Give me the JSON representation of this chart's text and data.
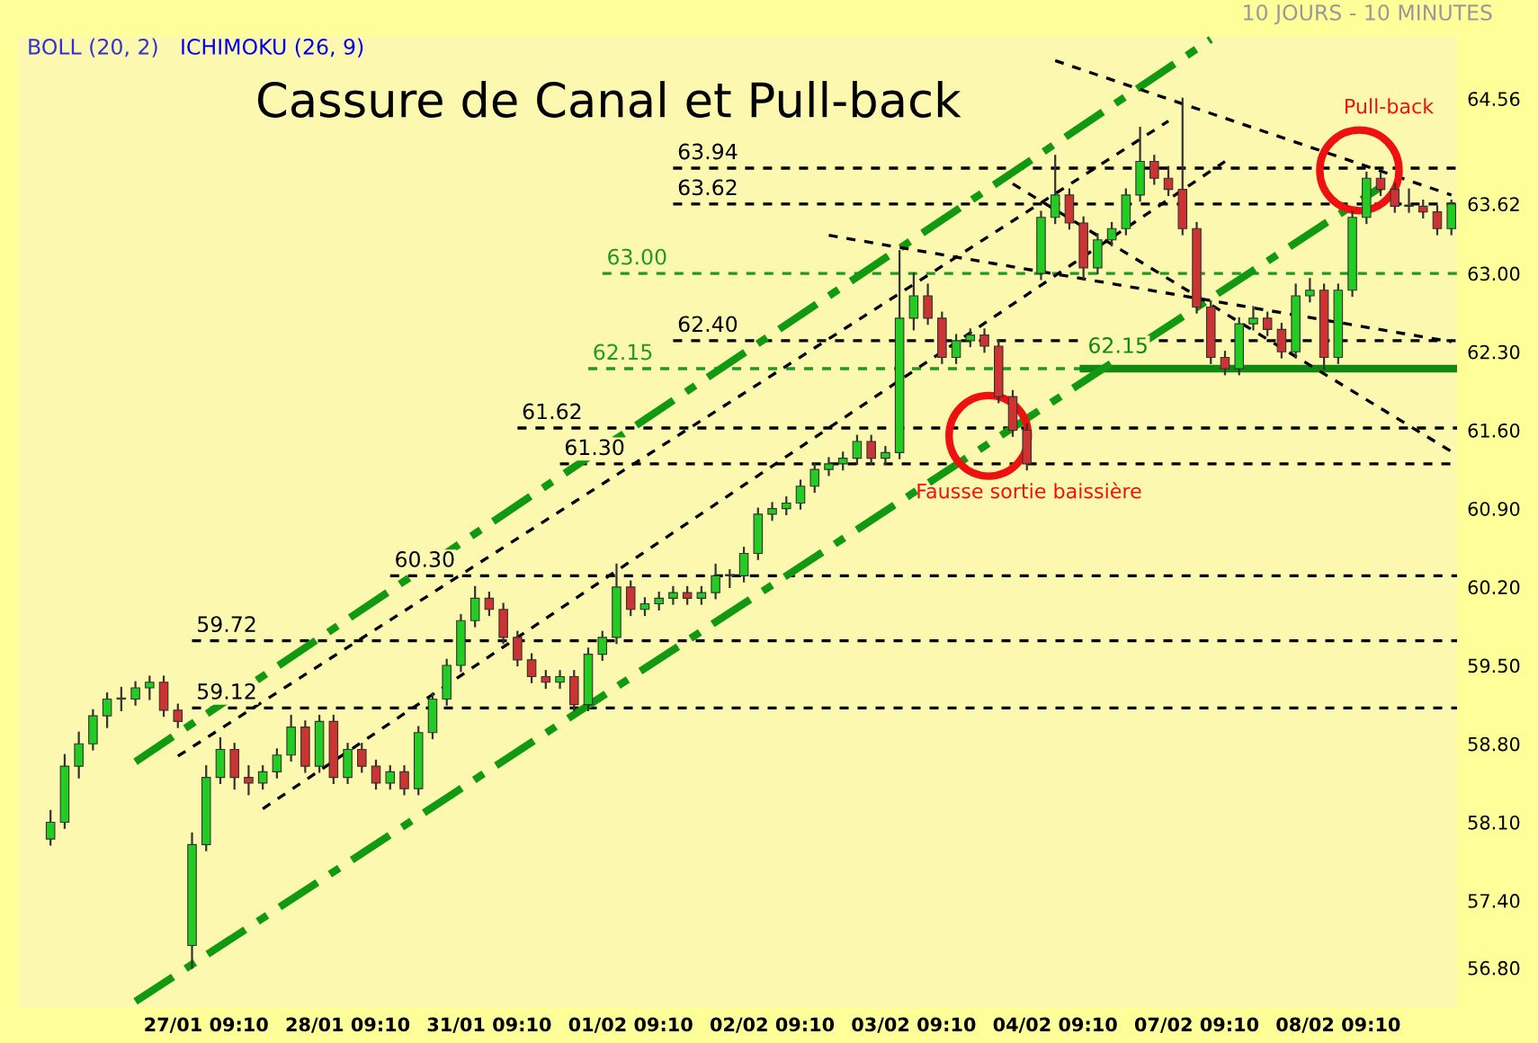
{
  "chart_data": {
    "type": "candlestick",
    "title": "Cassure de Canal et Pull-back",
    "subtitle": "10 JOURS - 10 MINUTES",
    "annotations": [
      "BOLL (20, 2)",
      "ICHIMOKU (26, 9)",
      "Pull-back",
      "Fausse sortie baissière"
    ],
    "categories": [
      null,
      null,
      null,
      null,
      null,
      null,
      null,
      null,
      null,
      null,
      null,
      null,
      null,
      "27/01 09:10",
      null,
      null,
      null,
      null,
      null,
      null,
      null,
      null,
      null,
      "28/01 09:10",
      null,
      null,
      null,
      null,
      null,
      null,
      null,
      null,
      null,
      "31/01 09:10",
      null,
      null,
      null,
      null,
      null,
      null,
      null,
      null,
      null,
      "01/02 09:10",
      null,
      null,
      null,
      null,
      null,
      null,
      null,
      null,
      null,
      "02/02 09:10",
      null,
      null,
      null,
      null,
      null,
      null,
      null,
      null,
      null,
      "03/02 09:10",
      null,
      null,
      null,
      null,
      null,
      null,
      null,
      null,
      null,
      "04/02 09:10",
      null,
      null,
      null,
      null,
      null,
      null,
      null,
      null,
      null,
      "07/02 09:10",
      null,
      null,
      null,
      null,
      null,
      null,
      null,
      null,
      null,
      "08/02 09:10",
      null,
      null,
      null,
      null,
      null,
      null,
      null,
      null
    ],
    "ohlc": [
      null,
      null,
      [
        57.95,
        58.2,
        57.9,
        58.1
      ],
      [
        58.1,
        58.7,
        58.05,
        58.6
      ],
      [
        58.6,
        58.9,
        58.5,
        58.8
      ],
      [
        58.8,
        59.1,
        58.75,
        59.05
      ],
      [
        59.05,
        59.25,
        58.95,
        59.2
      ],
      [
        59.2,
        59.3,
        59.1,
        59.2
      ],
      [
        59.2,
        59.35,
        59.15,
        59.3
      ],
      [
        59.3,
        59.4,
        59.2,
        59.35
      ],
      [
        59.35,
        59.4,
        59.05,
        59.1
      ],
      [
        59.1,
        59.15,
        58.95,
        59.0
      ],
      [
        57.0,
        58.0,
        56.8,
        57.9
      ],
      [
        57.9,
        58.6,
        57.85,
        58.5
      ],
      [
        58.5,
        58.85,
        58.45,
        58.75
      ],
      [
        58.75,
        58.8,
        58.4,
        58.5
      ],
      [
        58.5,
        58.6,
        58.35,
        58.45
      ],
      [
        58.45,
        58.6,
        58.4,
        58.55
      ],
      [
        58.55,
        58.75,
        58.5,
        58.7
      ],
      [
        58.7,
        59.05,
        58.65,
        58.95
      ],
      [
        58.95,
        59.0,
        58.55,
        58.6
      ],
      [
        58.6,
        59.05,
        58.55,
        59.0
      ],
      [
        59.0,
        59.05,
        58.45,
        58.5
      ],
      [
        58.5,
        58.8,
        58.45,
        58.75
      ],
      [
        58.75,
        58.8,
        58.55,
        58.6
      ],
      [
        58.6,
        58.65,
        58.4,
        58.45
      ],
      [
        58.45,
        58.6,
        58.4,
        58.55
      ],
      [
        58.55,
        58.6,
        58.35,
        58.4
      ],
      [
        58.4,
        58.95,
        58.35,
        58.9
      ],
      [
        58.9,
        59.25,
        58.85,
        59.2
      ],
      [
        59.2,
        59.55,
        59.15,
        59.5
      ],
      [
        59.5,
        59.95,
        59.45,
        59.9
      ],
      [
        59.9,
        60.2,
        59.85,
        60.1
      ],
      [
        60.1,
        60.15,
        59.95,
        60.0
      ],
      [
        60.0,
        60.05,
        59.7,
        59.75
      ],
      [
        59.75,
        59.8,
        59.5,
        59.55
      ],
      [
        59.55,
        59.6,
        59.35,
        59.4
      ],
      [
        59.4,
        59.45,
        59.3,
        59.35
      ],
      [
        59.35,
        59.45,
        59.3,
        59.4
      ],
      [
        59.4,
        59.45,
        59.1,
        59.15
      ],
      [
        59.15,
        59.65,
        59.1,
        59.6
      ],
      [
        59.6,
        59.8,
        59.55,
        59.75
      ],
      [
        59.75,
        60.4,
        59.7,
        60.2
      ],
      [
        60.2,
        60.25,
        59.95,
        60.0
      ],
      [
        60.0,
        60.1,
        59.95,
        60.05
      ],
      [
        60.05,
        60.15,
        60.0,
        60.1
      ],
      [
        60.1,
        60.2,
        60.05,
        60.15
      ],
      [
        60.15,
        60.2,
        60.05,
        60.1
      ],
      [
        60.1,
        60.2,
        60.05,
        60.15
      ],
      [
        60.15,
        60.4,
        60.1,
        60.3
      ],
      [
        60.3,
        60.35,
        60.2,
        60.3
      ],
      [
        60.3,
        60.55,
        60.25,
        60.5
      ],
      [
        60.5,
        60.9,
        60.45,
        60.85
      ],
      [
        60.85,
        60.95,
        60.8,
        60.9
      ],
      [
        60.9,
        61.0,
        60.85,
        60.95
      ],
      [
        60.95,
        61.15,
        60.9,
        61.1
      ],
      [
        61.1,
        61.3,
        61.05,
        61.25
      ],
      [
        61.25,
        61.35,
        61.2,
        61.3
      ],
      [
        61.3,
        61.4,
        61.25,
        61.35
      ],
      [
        61.35,
        61.55,
        61.3,
        61.5
      ],
      [
        61.5,
        61.55,
        61.3,
        61.35
      ],
      [
        61.35,
        61.45,
        61.3,
        61.4
      ],
      [
        61.4,
        63.2,
        61.35,
        62.6
      ],
      [
        62.6,
        63.0,
        62.5,
        62.8
      ],
      [
        62.8,
        62.9,
        62.55,
        62.6
      ],
      [
        62.6,
        62.65,
        62.2,
        62.25
      ],
      [
        62.25,
        62.45,
        62.2,
        62.4
      ],
      [
        62.4,
        62.5,
        62.35,
        62.45
      ],
      [
        62.45,
        62.5,
        62.3,
        62.35
      ],
      [
        62.35,
        62.4,
        61.85,
        61.9
      ],
      [
        61.9,
        61.95,
        61.55,
        61.6
      ],
      [
        61.6,
        61.65,
        61.25,
        61.3
      ],
      [
        63.0,
        63.55,
        62.95,
        63.5
      ],
      [
        63.5,
        64.05,
        63.45,
        63.7
      ],
      [
        63.7,
        63.75,
        63.4,
        63.45
      ],
      [
        63.45,
        63.5,
        62.95,
        63.05
      ],
      [
        63.05,
        63.35,
        63.0,
        63.3
      ],
      [
        63.3,
        63.45,
        63.25,
        63.4
      ],
      [
        63.4,
        63.75,
        63.35,
        63.7
      ],
      [
        63.7,
        64.3,
        63.65,
        64.0
      ],
      [
        64.0,
        64.05,
        63.8,
        63.85
      ],
      [
        63.85,
        63.95,
        63.7,
        63.75
      ],
      [
        63.75,
        64.56,
        63.35,
        63.4
      ],
      [
        63.4,
        63.45,
        62.65,
        62.7
      ],
      [
        62.7,
        62.75,
        62.2,
        62.25
      ],
      [
        62.25,
        62.3,
        62.1,
        62.15
      ],
      [
        62.15,
        62.6,
        62.1,
        62.55
      ],
      [
        62.55,
        62.7,
        62.5,
        62.6
      ],
      [
        62.6,
        62.65,
        62.45,
        62.5
      ],
      [
        62.5,
        62.55,
        62.25,
        62.3
      ],
      [
        62.3,
        62.9,
        62.25,
        62.8
      ],
      [
        62.8,
        62.95,
        62.75,
        62.85
      ],
      [
        62.85,
        62.9,
        62.15,
        62.25
      ],
      [
        62.25,
        62.9,
        62.2,
        62.85
      ],
      [
        62.85,
        63.55,
        62.8,
        63.5
      ],
      [
        63.5,
        63.9,
        63.45,
        63.85
      ],
      [
        63.85,
        63.9,
        63.7,
        63.75
      ],
      [
        63.75,
        63.8,
        63.55,
        63.6
      ],
      [
        63.6,
        63.75,
        63.55,
        63.6
      ],
      [
        63.6,
        63.65,
        63.5,
        63.55
      ],
      [
        63.55,
        63.6,
        63.35,
        63.4
      ],
      [
        63.4,
        63.65,
        63.35,
        63.62
      ]
    ],
    "series": [
      {
        "type": "line",
        "color": "#119911",
        "line_style": "dashdot",
        "values": [
          null,
          null,
          null,
          null,
          null,
          null,
          null,
          null,
          58.64,
          null,
          null,
          null,
          null,
          null,
          null,
          null,
          null,
          null,
          null,
          null,
          null,
          null,
          null,
          null,
          null,
          null,
          null,
          null,
          null,
          null,
          null,
          null,
          null,
          null,
          null,
          null,
          null,
          null,
          null,
          null,
          null,
          null,
          null,
          null,
          null,
          null,
          null,
          null,
          null,
          null,
          null,
          null,
          null,
          null,
          null,
          null,
          null,
          null,
          null,
          null,
          null,
          null,
          null,
          null,
          null,
          null,
          null,
          null,
          null,
          null,
          null,
          null,
          null,
          null,
          null,
          null,
          null,
          null,
          null,
          null,
          null,
          null,
          null,
          null,
          65.09,
          null,
          null,
          null,
          null,
          null,
          null,
          null,
          null,
          null,
          null,
          null,
          null,
          null,
          null,
          null,
          null,
          null
        ]
      },
      {
        "type": "line",
        "color": "#119911",
        "line_style": "dashdot",
        "values": [
          null,
          null,
          null,
          null,
          null,
          null,
          null,
          null,
          56.5,
          null,
          null,
          null,
          null,
          null,
          null,
          null,
          null,
          null,
          null,
          null,
          null,
          null,
          null,
          null,
          null,
          null,
          null,
          null,
          null,
          null,
          null,
          null,
          null,
          null,
          null,
          null,
          null,
          null,
          null,
          null,
          null,
          null,
          null,
          null,
          null,
          null,
          null,
          null,
          null,
          null,
          null,
          null,
          null,
          null,
          null,
          null,
          null,
          null,
          null,
          null,
          null,
          null,
          null,
          null,
          null,
          null,
          null,
          null,
          null,
          null,
          null,
          null,
          null,
          null,
          null,
          null,
          null,
          null,
          null,
          null,
          null,
          null,
          null,
          null,
          null,
          null,
          null,
          null,
          null,
          null,
          null,
          null,
          null,
          null,
          null,
          null,
          63.77,
          null,
          null,
          null,
          null,
          null
        ]
      },
      {
        "type": "line",
        "color": "#000000",
        "line_style": "dashed",
        "values": [
          null,
          null,
          null,
          null,
          null,
          null,
          null,
          null,
          null,
          null,
          null,
          58.69,
          null,
          null,
          null,
          null,
          null,
          null,
          null,
          null,
          null,
          null,
          null,
          null,
          null,
          null,
          null,
          null,
          null,
          null,
          null,
          null,
          null,
          null,
          null,
          null,
          null,
          null,
          null,
          null,
          null,
          null,
          null,
          null,
          null,
          null,
          null,
          null,
          null,
          null,
          null,
          null,
          null,
          null,
          null,
          null,
          null,
          null,
          null,
          null,
          null,
          null,
          null,
          null,
          null,
          null,
          null,
          null,
          null,
          null,
          null,
          null,
          null,
          null,
          null,
          null,
          null,
          null,
          null,
          null,
          null,
          64.36,
          null,
          null,
          null,
          null,
          null,
          null,
          null,
          null,
          null,
          null,
          null,
          null,
          null,
          null,
          null,
          null,
          null,
          null,
          null,
          null
        ]
      },
      {
        "type": "line",
        "color": "#000000",
        "line_style": "dashed",
        "values": [
          null,
          null,
          null,
          null,
          null,
          null,
          null,
          null,
          null,
          null,
          null,
          null,
          null,
          null,
          null,
          null,
          null,
          58.22,
          null,
          null,
          null,
          null,
          null,
          null,
          null,
          null,
          null,
          null,
          null,
          null,
          null,
          null,
          null,
          null,
          null,
          null,
          null,
          null,
          null,
          null,
          null,
          null,
          null,
          null,
          null,
          null,
          null,
          null,
          null,
          null,
          null,
          null,
          null,
          null,
          null,
          null,
          null,
          null,
          null,
          null,
          null,
          null,
          null,
          null,
          null,
          null,
          null,
          null,
          null,
          null,
          null,
          null,
          null,
          null,
          null,
          null,
          null,
          null,
          null,
          null,
          null,
          null,
          null,
          null,
          null,
          64.0,
          null,
          null,
          null,
          null,
          null,
          null,
          null,
          null,
          null,
          null,
          null,
          null,
          null,
          null,
          null,
          null
        ]
      },
      {
        "type": "line",
        "color": "#000000",
        "line_style": "dashed",
        "values": [
          null,
          null,
          null,
          null,
          null,
          null,
          null,
          null,
          null,
          null,
          null,
          null,
          null,
          null,
          null,
          null,
          null,
          null,
          null,
          null,
          null,
          null,
          null,
          null,
          null,
          null,
          null,
          null,
          null,
          null,
          null,
          null,
          null,
          null,
          null,
          null,
          null,
          null,
          null,
          null,
          null,
          null,
          null,
          null,
          null,
          null,
          null,
          null,
          null,
          null,
          null,
          null,
          null,
          null,
          null,
          null,
          null,
          null,
          null,
          null,
          null,
          null,
          null,
          null,
          null,
          null,
          null,
          null,
          null,
          null,
          null,
          null,
          null,
          64.9,
          null,
          null,
          null,
          null,
          null,
          null,
          null,
          null,
          null,
          null,
          null,
          null,
          null,
          null,
          null,
          null,
          null,
          null,
          null,
          null,
          null,
          null,
          null,
          null,
          null,
          null,
          null,
          63.7
        ]
      },
      {
        "type": "line",
        "color": "#000000",
        "line_style": "dashed",
        "values": [
          null,
          null,
          null,
          null,
          null,
          null,
          null,
          null,
          null,
          null,
          null,
          null,
          null,
          null,
          null,
          null,
          null,
          null,
          null,
          null,
          null,
          null,
          null,
          null,
          null,
          null,
          null,
          null,
          null,
          null,
          null,
          null,
          null,
          null,
          null,
          null,
          null,
          null,
          null,
          null,
          null,
          null,
          null,
          null,
          null,
          null,
          null,
          null,
          null,
          null,
          null,
          null,
          null,
          null,
          null,
          null,
          null,
          63.34,
          null,
          null,
          null,
          null,
          null,
          null,
          null,
          null,
          null,
          null,
          null,
          null,
          null,
          null,
          null,
          null,
          null,
          null,
          null,
          null,
          null,
          null,
          null,
          null,
          null,
          null,
          null,
          null,
          null,
          null,
          null,
          null,
          null,
          null,
          null,
          null,
          null,
          null,
          null,
          null,
          null,
          null,
          null,
          62.39
        ]
      },
      {
        "type": "line",
        "color": "#000000",
        "line_style": "dashed",
        "values": [
          null,
          null,
          null,
          null,
          null,
          null,
          null,
          null,
          null,
          null,
          null,
          null,
          null,
          null,
          null,
          null,
          null,
          null,
          null,
          null,
          null,
          null,
          null,
          null,
          null,
          null,
          null,
          null,
          null,
          null,
          null,
          null,
          null,
          null,
          null,
          null,
          null,
          null,
          null,
          null,
          null,
          null,
          null,
          null,
          null,
          null,
          null,
          null,
          null,
          null,
          null,
          null,
          null,
          null,
          null,
          null,
          null,
          null,
          null,
          null,
          null,
          null,
          null,
          null,
          null,
          null,
          null,
          null,
          null,
          null,
          63.8,
          null,
          null,
          null,
          null,
          null,
          null,
          null,
          null,
          null,
          null,
          null,
          null,
          null,
          null,
          null,
          null,
          null,
          null,
          null,
          null,
          null,
          null,
          null,
          null,
          null,
          null,
          null,
          null,
          null,
          null,
          61.41
        ]
      }
    ],
    "ref_lines": [
      {
        "axis": "y",
        "value": 63.94,
        "label": "63.94",
        "color": "#000000",
        "line_style": "dashed"
      },
      {
        "axis": "y",
        "value": 63.62,
        "label": "63.62",
        "color": "#000000",
        "line_style": "dashed"
      },
      {
        "axis": "y",
        "value": 63.0,
        "label": "63.00",
        "color": "#229922",
        "line_style": "dashed"
      },
      {
        "axis": "y",
        "value": 62.4,
        "label": "62.40",
        "color": "#000000",
        "line_style": "dashed"
      },
      {
        "axis": "y",
        "value": 62.15,
        "label": "62.15",
        "color": "#229922",
        "line_style": "dashed"
      },
      {
        "axis": "y",
        "value": 62.15,
        "label": "62.15",
        "color": "#118811",
        "line_style": "solid"
      },
      {
        "axis": "y",
        "value": 61.62,
        "label": "61.62",
        "color": "#000000",
        "line_style": "dashed"
      },
      {
        "axis": "y",
        "value": 61.3,
        "label": "61.30",
        "color": "#000000",
        "line_style": "dashed"
      },
      {
        "axis": "y",
        "value": 60.3,
        "label": "60.30",
        "color": "#000000",
        "line_style": "dashed"
      },
      {
        "axis": "y",
        "value": 59.72,
        "label": "59.72",
        "color": "#000000",
        "line_style": "dashed"
      },
      {
        "axis": "y",
        "value": 59.12,
        "label": "59.12",
        "color": "#000000",
        "line_style": "dashed"
      }
    ],
    "ylim": [
      56.45,
      65.12
    ],
    "yticks": [
      {
        "value": 56.8,
        "label": "56.80"
      },
      {
        "value": 57.4,
        "label": "57.40"
      },
      {
        "value": 58.1,
        "label": "58.10"
      },
      {
        "value": 58.8,
        "label": "58.80"
      },
      {
        "value": 59.5,
        "label": "59.50"
      },
      {
        "value": 60.2,
        "label": "60.20"
      },
      {
        "value": 60.9,
        "label": "60.90"
      },
      {
        "value": 61.6,
        "label": "61.60"
      },
      {
        "value": 62.3,
        "label": "62.30"
      },
      {
        "value": 63.0,
        "label": "63.00"
      },
      63.62,
      64.56
    ],
    "grid": false,
    "legend": false
  }
}
